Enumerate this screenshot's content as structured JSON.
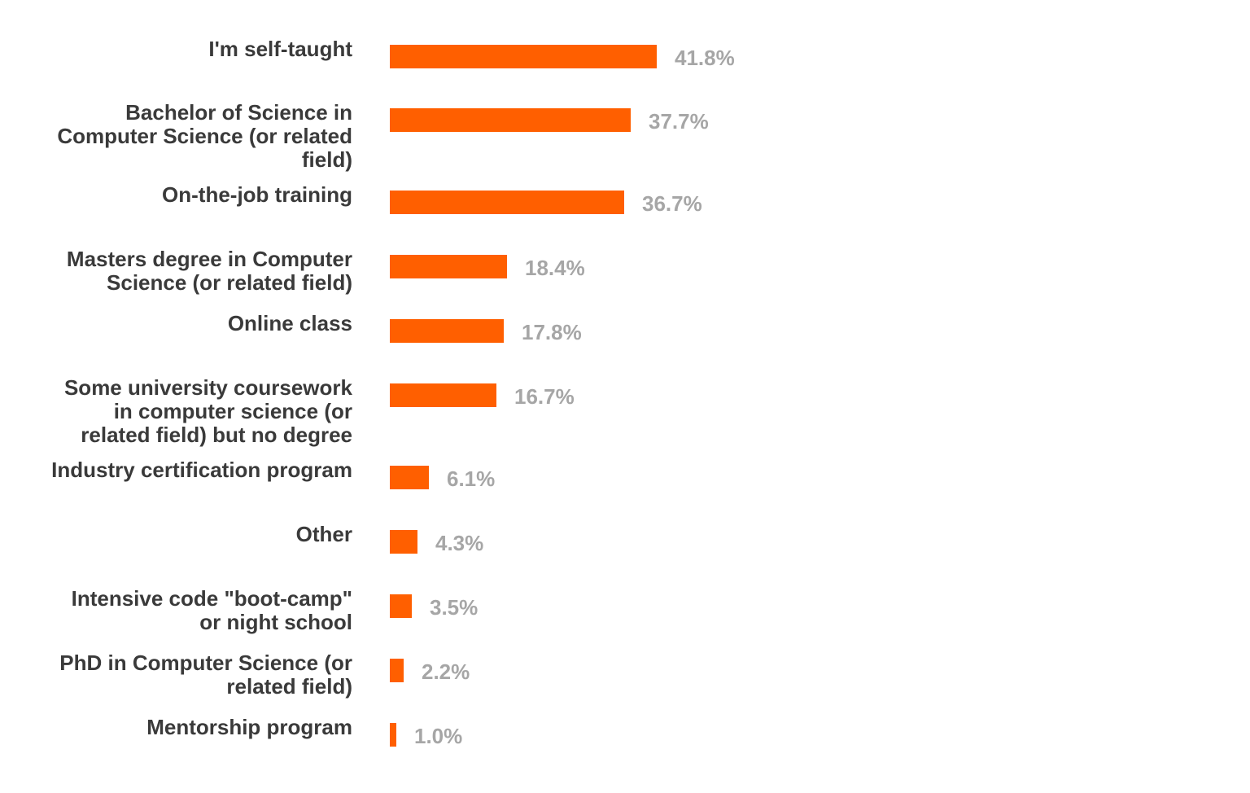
{
  "chart_data": {
    "type": "bar",
    "orientation": "horizontal",
    "categories": [
      "I'm self-taught",
      "Bachelor of Science in Computer Science (or related field)",
      "On-the-job training",
      "Masters degree in Computer Science (or related field)",
      "Online class",
      "Some university coursework in computer science (or related field) but no degree",
      "Industry certification program",
      "Other",
      "Intensive code \"boot-camp\" or night school",
      "PhD in Computer Science (or related field)",
      "Mentorship program"
    ],
    "category_lines": [
      [
        "I'm self-taught"
      ],
      [
        "Bachelor of Science in",
        "Computer Science (or related",
        "field)"
      ],
      [
        "On-the-job training"
      ],
      [
        "Masters degree in Computer",
        "Science (or related field)"
      ],
      [
        "Online class"
      ],
      [
        "Some university coursework",
        "in computer science (or",
        "related field) but no degree"
      ],
      [
        "Industry certification program"
      ],
      [
        "Other"
      ],
      [
        "Intensive code \"boot-camp\"",
        "or night school"
      ],
      [
        "PhD in Computer Science (or",
        "related field)"
      ],
      [
        "Mentorship program"
      ]
    ],
    "values": [
      41.8,
      37.7,
      36.7,
      18.4,
      17.8,
      16.7,
      6.1,
      4.3,
      3.5,
      2.2,
      1.0
    ],
    "value_labels": [
      "41.8%",
      "37.7%",
      "36.7%",
      "18.4%",
      "17.8%",
      "16.7%",
      "6.1%",
      "4.3%",
      "3.5%",
      "2.2%",
      "1.0%"
    ],
    "unit": "%",
    "title": "",
    "xlabel": "",
    "ylabel": "",
    "grid": false,
    "colors": {
      "bar": "#ff5f00",
      "category_text": "#3a3a3a",
      "value_text": "#a6a6a6"
    }
  }
}
